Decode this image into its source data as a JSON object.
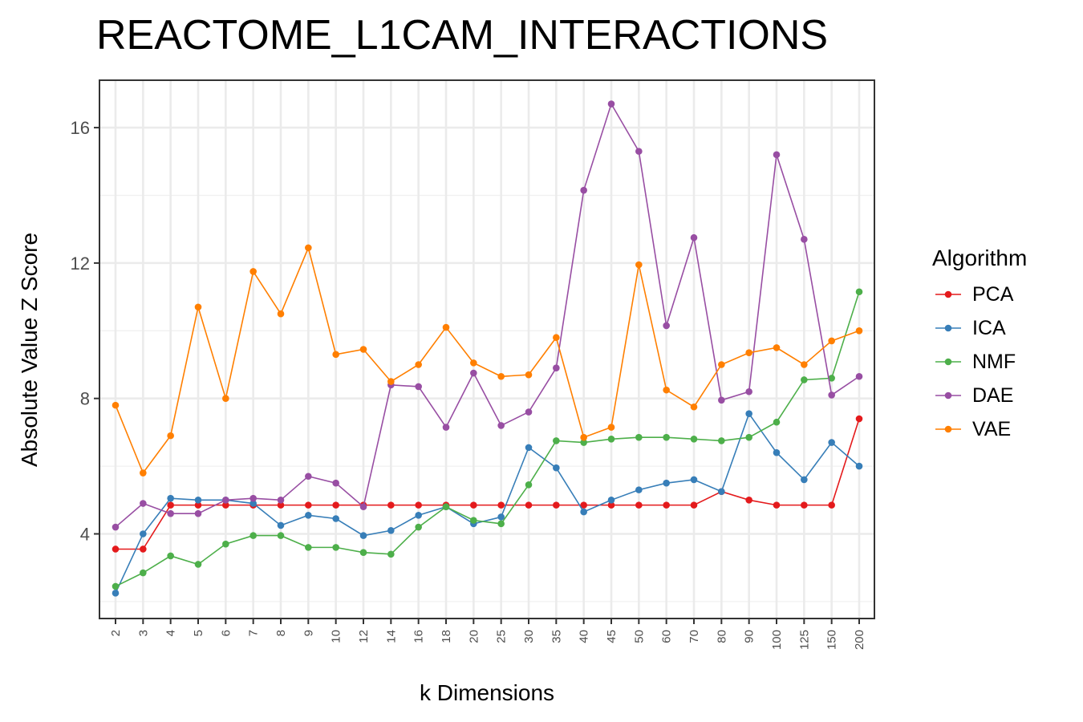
{
  "chart_data": {
    "type": "line",
    "title": "REACTOME_L1CAM_INTERACTIONS",
    "xlabel": "k Dimensions",
    "ylabel": "Absolute Value Z Score",
    "ylim": [
      1.5,
      17.4
    ],
    "yticks": [
      4,
      8,
      12,
      16
    ],
    "grid": true,
    "legend_title": "Algorithm",
    "legend_position": "right",
    "categories": [
      "2",
      "3",
      "4",
      "5",
      "6",
      "7",
      "8",
      "9",
      "10",
      "12",
      "14",
      "16",
      "18",
      "20",
      "25",
      "30",
      "35",
      "40",
      "45",
      "50",
      "60",
      "70",
      "80",
      "90",
      "100",
      "125",
      "150",
      "200"
    ],
    "series": [
      {
        "name": "PCA",
        "color": "#e41a1c",
        "values": [
          3.55,
          3.55,
          4.85,
          4.85,
          4.85,
          4.85,
          4.85,
          4.85,
          4.85,
          4.85,
          4.85,
          4.85,
          4.85,
          4.85,
          4.85,
          4.85,
          4.85,
          4.85,
          4.85,
          4.85,
          4.85,
          4.85,
          5.25,
          5.0,
          4.85,
          4.85,
          4.85,
          7.4
        ]
      },
      {
        "name": "ICA",
        "color": "#377eb8",
        "values": [
          2.25,
          4.0,
          5.05,
          5.0,
          5.0,
          4.9,
          4.25,
          4.55,
          4.45,
          3.95,
          4.1,
          4.55,
          4.8,
          4.3,
          4.5,
          6.55,
          5.95,
          4.65,
          5.0,
          5.3,
          5.5,
          5.6,
          5.25,
          7.55,
          6.4,
          5.6,
          6.7,
          6.0
        ]
      },
      {
        "name": "NMF",
        "color": "#4daf4a",
        "values": [
          2.45,
          2.85,
          3.35,
          3.1,
          3.7,
          3.95,
          3.95,
          3.6,
          3.6,
          3.45,
          3.4,
          4.2,
          4.8,
          4.4,
          4.3,
          5.45,
          6.75,
          6.7,
          6.8,
          6.85,
          6.85,
          6.8,
          6.75,
          6.85,
          7.3,
          8.55,
          8.6,
          11.15
        ]
      },
      {
        "name": "DAE",
        "color": "#984ea3",
        "values": [
          4.2,
          4.9,
          4.6,
          4.6,
          5.0,
          5.05,
          5.0,
          5.7,
          5.5,
          4.8,
          8.4,
          8.35,
          7.15,
          8.75,
          7.2,
          7.6,
          8.9,
          14.15,
          16.7,
          15.3,
          10.15,
          12.75,
          7.95,
          8.2,
          15.2,
          12.7,
          8.1,
          8.65
        ]
      },
      {
        "name": "VAE",
        "color": "#ff7f00",
        "values": [
          7.8,
          5.8,
          6.9,
          10.7,
          8.0,
          11.75,
          10.5,
          12.45,
          9.3,
          9.45,
          8.5,
          9.0,
          10.1,
          9.05,
          8.65,
          8.7,
          9.8,
          6.85,
          7.15,
          11.95,
          8.25,
          7.75,
          9.0,
          9.35,
          9.5,
          9.0,
          9.7,
          10.0
        ]
      }
    ]
  }
}
